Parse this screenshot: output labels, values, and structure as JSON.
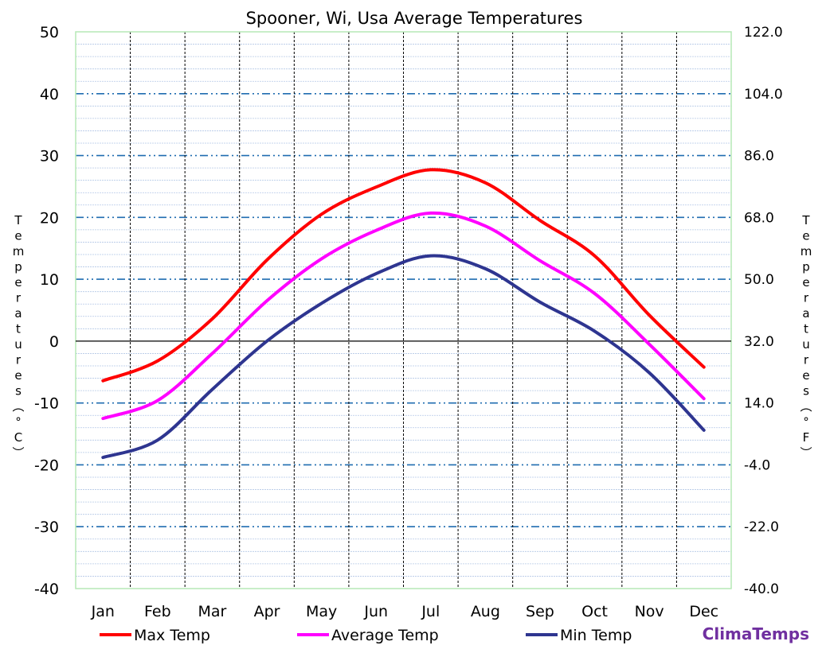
{
  "chart_data": {
    "type": "line",
    "title": "Spooner, Wi, Usa Average Temperatures",
    "categories": [
      "Jan",
      "Feb",
      "Mar",
      "Apr",
      "May",
      "Jun",
      "Jul",
      "Aug",
      "Sep",
      "Oct",
      "Nov",
      "Dec"
    ],
    "series": [
      {
        "name": "Max Temp",
        "color": "#ff0000",
        "values": [
          -6.4,
          -3.2,
          3.6,
          13.1,
          20.5,
          24.9,
          27.7,
          25.6,
          19.5,
          13.8,
          4.2,
          -4.2
        ]
      },
      {
        "name": "Average Temp",
        "color": "#ff00ff",
        "values": [
          -12.5,
          -9.6,
          -2.0,
          6.5,
          13.3,
          17.9,
          20.7,
          18.6,
          13.0,
          7.7,
          -0.5,
          -9.3
        ]
      },
      {
        "name": "Min Temp",
        "color": "#2e3590",
        "values": [
          -18.8,
          -16.0,
          -7.8,
          0.0,
          6.1,
          10.9,
          13.8,
          11.7,
          6.3,
          1.6,
          -5.1,
          -14.4
        ]
      }
    ],
    "y_left": {
      "label": "Temperatures (°C)",
      "ylim": [
        -40,
        50
      ],
      "ticks": [
        "-40",
        "-30",
        "-20",
        "-10",
        "0",
        "10",
        "20",
        "30",
        "40",
        "50"
      ]
    },
    "y_right": {
      "label": "Temperatures (°F)",
      "ylim": [
        -40,
        122
      ],
      "ticks": [
        "-40.0",
        "-22.0",
        "-4.0",
        "14.0",
        "32.0",
        "50.0",
        "68.0",
        "86.0",
        "104.0",
        "122.0"
      ]
    },
    "grid": true,
    "legend_position": "bottom",
    "brand": "ClimaTemps"
  }
}
